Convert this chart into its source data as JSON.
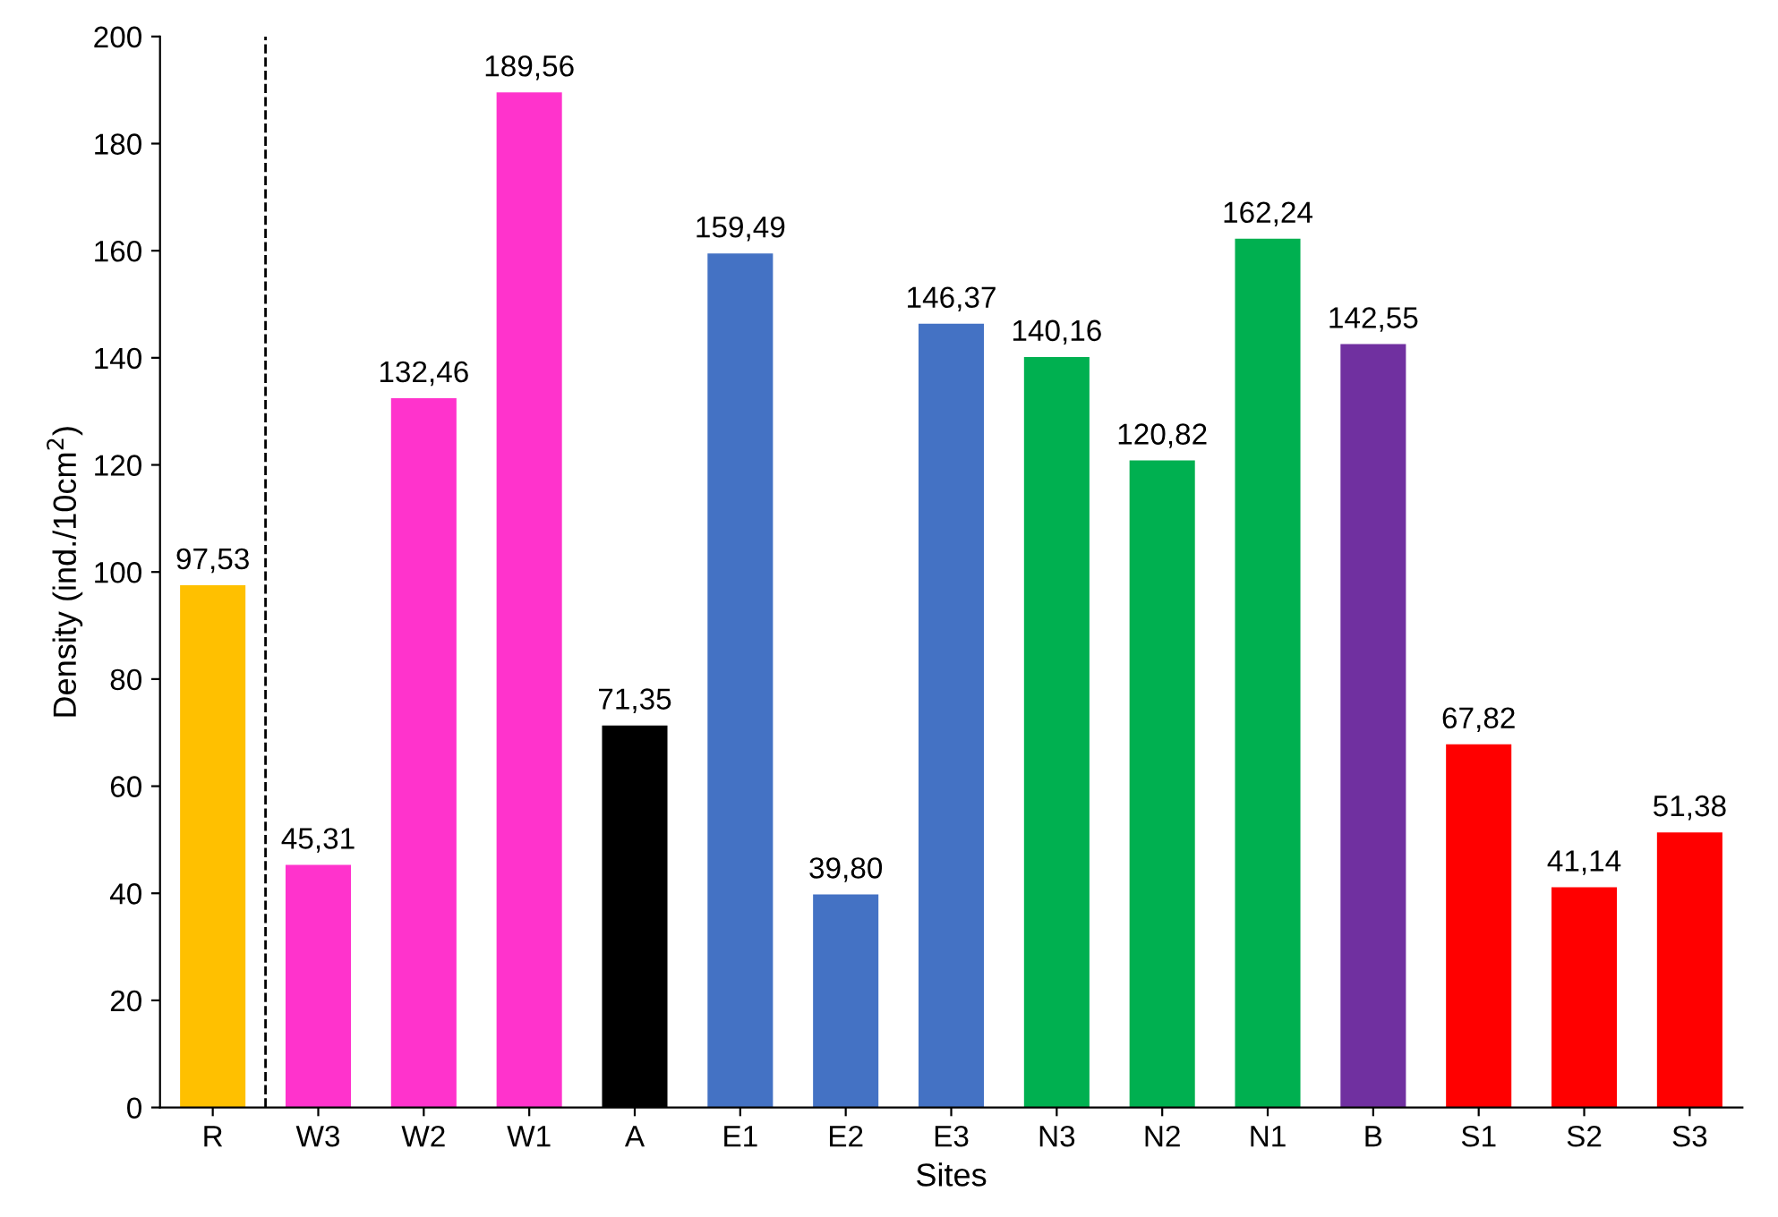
{
  "chart_data": {
    "type": "bar",
    "xlabel": "Sites",
    "ylabel": "Density (ind./10cm$^{2}$)",
    "categories": [
      "R",
      "W3",
      "W2",
      "W1",
      "A",
      "E1",
      "E2",
      "E3",
      "N3",
      "N2",
      "N1",
      "B",
      "S1",
      "S2",
      "S3"
    ],
    "values": [
      97.53,
      45.31,
      132.46,
      189.56,
      71.35,
      159.49,
      39.8,
      146.37,
      140.16,
      120.82,
      162.24,
      142.55,
      67.82,
      41.14,
      51.38
    ],
    "value_labels": [
      "97,53",
      "45,31",
      "132,46",
      "189,56",
      "71,35",
      "159,49",
      "39,80",
      "146,37",
      "140,16",
      "120,82",
      "162,24",
      "142,55",
      "67,82",
      "41,14",
      "51,38"
    ],
    "colors": [
      "#ffc000",
      "#ff33cc",
      "#ff33cc",
      "#ff33cc",
      "#000000",
      "#4472c4",
      "#4472c4",
      "#4472c4",
      "#00b050",
      "#00b050",
      "#00b050",
      "#7030a0",
      "#ff0000",
      "#ff0000",
      "#ff0000"
    ],
    "ylim": [
      0,
      200
    ],
    "yticks": [
      0,
      20,
      40,
      60,
      80,
      100,
      120,
      140,
      160,
      180,
      200
    ],
    "grid": false,
    "legend": false
  }
}
